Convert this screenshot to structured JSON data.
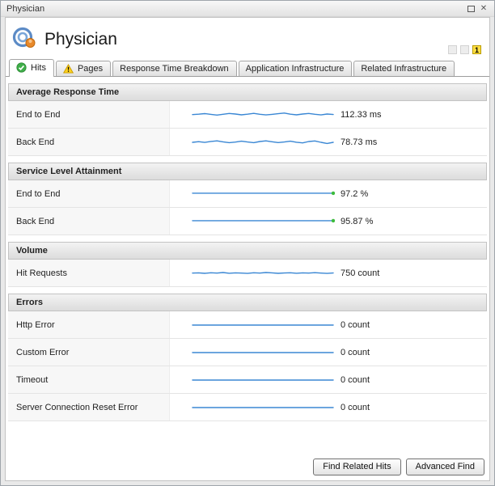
{
  "window": {
    "title": "Physician",
    "controls": [
      "float-window-icon",
      "close-icon"
    ]
  },
  "header": {
    "title": "Physician",
    "logo_icon": "concentric-circles-logo",
    "alert_badge": "1"
  },
  "tabs": [
    {
      "label": "Hits",
      "icon": "check-circle-icon",
      "active": true
    },
    {
      "label": "Pages",
      "icon": "warning-triangle-icon",
      "active": false
    },
    {
      "label": "Response Time Breakdown",
      "active": false
    },
    {
      "label": "Application Infrastructure",
      "active": false
    },
    {
      "label": "Related Infrastructure",
      "active": false
    }
  ],
  "colors": {
    "spark_line": "#3a87d4",
    "dot_green": "#3dbb3d",
    "alert_yellow": "#ffdf43"
  },
  "sections": [
    {
      "title": "Average Response Time",
      "rows": [
        {
          "label": "End to End",
          "value": "112.33 ms",
          "spark": {
            "points": [
              52,
              56,
              61,
              54,
              48,
              55,
              62,
              57,
              50,
              56,
              63,
              55,
              49,
              54,
              60,
              66,
              56,
              50,
              57,
              62,
              55,
              49,
              57,
              53
            ],
            "end_dot": null
          }
        },
        {
          "label": "Back End",
          "value": "78.73 ms",
          "spark": {
            "points": [
              50,
              56,
              49,
              58,
              63,
              54,
              47,
              52,
              60,
              53,
              47,
              57,
              63,
              55,
              48,
              53,
              60,
              51,
              45,
              57,
              62,
              50,
              40,
              50
            ],
            "end_dot": null
          }
        }
      ]
    },
    {
      "title": "Service Level Attainment",
      "rows": [
        {
          "label": "End to End",
          "value": "97.2 %",
          "spark": {
            "points": [
              58,
              58
            ],
            "end_dot": "green"
          }
        },
        {
          "label": "Back End",
          "value": "95.87 %",
          "spark": {
            "points": [
              58,
              58
            ],
            "end_dot": "green"
          }
        }
      ]
    },
    {
      "title": "Volume",
      "rows": [
        {
          "label": "Hit Requests",
          "value": "750 count",
          "spark": {
            "points": [
              52,
              54,
              50,
              55,
              52,
              57,
              51,
              54,
              52,
              49,
              55,
              52,
              57,
              54,
              50,
              53,
              55,
              51,
              54,
              52,
              56,
              52,
              49,
              53
            ],
            "end_dot": null
          }
        }
      ]
    },
    {
      "title": "Errors",
      "rows": [
        {
          "label": "Http Error",
          "value": "0 count",
          "spark": {
            "points": [
              50,
              50
            ],
            "end_dot": null
          }
        },
        {
          "label": "Custom Error",
          "value": "0 count",
          "spark": {
            "points": [
              50,
              50
            ],
            "end_dot": null
          }
        },
        {
          "label": "Timeout",
          "value": "0 count",
          "spark": {
            "points": [
              50,
              50
            ],
            "end_dot": null
          }
        },
        {
          "label": "Server Connection Reset Error",
          "value": "0 count",
          "spark": {
            "points": [
              50,
              50
            ],
            "end_dot": null
          }
        }
      ]
    }
  ],
  "footer": {
    "find_related_label": "Find Related Hits",
    "advanced_find_label": "Advanced Find"
  }
}
